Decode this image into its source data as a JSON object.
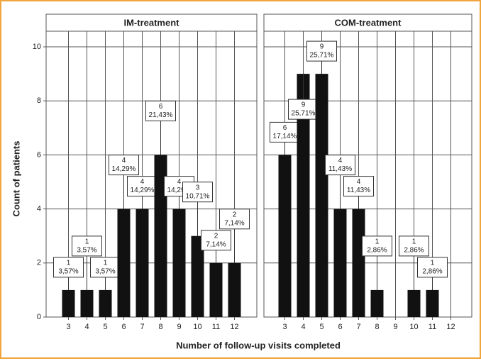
{
  "y_label": "Count of patients",
  "x_label": "Number of follow-up visits completed",
  "chart_data": [
    {
      "type": "bar",
      "title": "IM-treatment",
      "categories": [
        3,
        4,
        5,
        6,
        7,
        8,
        9,
        10,
        11,
        12
      ],
      "values": [
        1,
        1,
        1,
        4,
        4,
        6,
        4,
        3,
        2,
        2
      ],
      "percent_labels": [
        "3,57%",
        "3,57%",
        "3,57%",
        "14,29%",
        "14,29%",
        "21,43%",
        "14,29%",
        "10,71%",
        "7,14%",
        "7,14%"
      ],
      "color": "#111111",
      "ylim": [
        0,
        10
      ],
      "yticks": [
        0,
        2,
        4,
        6,
        8,
        10
      ],
      "grid": true
    },
    {
      "type": "bar",
      "title": "COM-treatment",
      "categories": [
        3,
        4,
        5,
        6,
        7,
        8,
        9,
        10,
        11,
        12
      ],
      "values": [
        6,
        9,
        9,
        4,
        4,
        1,
        0,
        1,
        1,
        0
      ],
      "percent_labels": [
        "17,14%",
        "25,71%",
        "25,71%",
        "11,43%",
        "11,43%",
        "2,86%",
        null,
        "2,86%",
        "2,86%",
        null
      ],
      "color": "#111111",
      "ylim": [
        0,
        10
      ],
      "yticks": [
        0,
        2,
        4,
        6,
        8,
        10
      ],
      "grid": true
    }
  ]
}
